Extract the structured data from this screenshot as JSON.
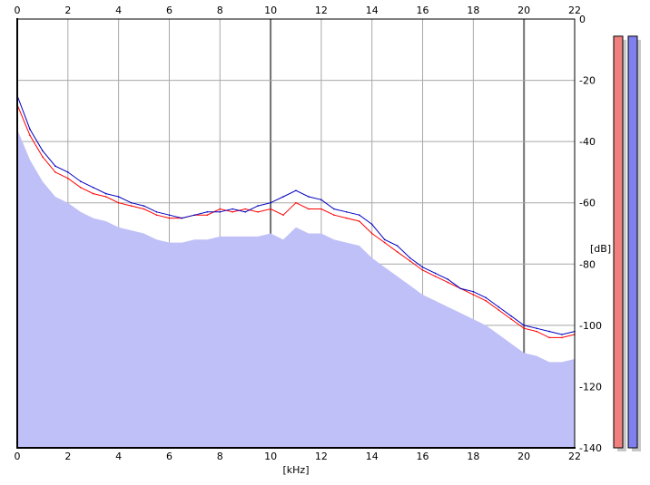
{
  "chart_data": {
    "type": "line",
    "xlabel": "[kHz]",
    "ylabel": "[dB]",
    "xlim": [
      0,
      22
    ],
    "ylim": [
      -140,
      0
    ],
    "x_ticks": [
      "0",
      "2",
      "4",
      "6",
      "8",
      "10",
      "12",
      "14",
      "16",
      "18",
      "20",
      "22"
    ],
    "y_ticks": [
      "0",
      "-20",
      "-40",
      "-60",
      "-80",
      "-100",
      "-120",
      "-140"
    ],
    "grid": true,
    "series": [
      {
        "color": "#ff0000",
        "x": [
          0,
          0.5,
          1,
          1.5,
          2,
          2.5,
          3,
          3.5,
          4,
          4.5,
          5,
          5.5,
          6,
          6.5,
          7,
          7.5,
          8,
          8.5,
          9,
          9.5,
          10,
          10.5,
          11,
          11.5,
          12,
          12.5,
          13,
          13.5,
          14,
          14.5,
          15,
          15.5,
          16,
          16.5,
          17,
          17.5,
          18,
          18.5,
          19,
          19.5,
          20,
          20.5,
          21,
          21.5,
          22
        ],
        "values": [
          -28,
          -38,
          -45,
          -50,
          -52,
          -55,
          -57,
          -58,
          -60,
          -61,
          -62,
          -64,
          -65,
          -65,
          -64,
          -64,
          -62,
          -63,
          -62,
          -63,
          -62,
          -64,
          -60,
          -62,
          -62,
          -64,
          -65,
          -66,
          -70,
          -73,
          -76,
          -79,
          -82,
          -84,
          -86,
          -88,
          -90,
          -92,
          -95,
          -98,
          -101,
          -102,
          -104,
          -104,
          -103
        ]
      },
      {
        "color": "#0000c0",
        "x": [
          0,
          0.5,
          1,
          1.5,
          2,
          2.5,
          3,
          3.5,
          4,
          4.5,
          5,
          5.5,
          6,
          6.5,
          7,
          7.5,
          8,
          8.5,
          9,
          9.5,
          10,
          10.5,
          11,
          11.5,
          12,
          12.5,
          13,
          13.5,
          14,
          14.5,
          15,
          15.5,
          16,
          16.5,
          17,
          17.5,
          18,
          18.5,
          19,
          19.5,
          20,
          20.5,
          21,
          21.5,
          22
        ],
        "values": [
          -25,
          -36,
          -43,
          -48,
          -50,
          -53,
          -55,
          -57,
          -58,
          -60,
          -61,
          -63,
          -64,
          -65,
          -64,
          -63,
          -63,
          -62,
          -63,
          -61,
          -60,
          -58,
          -56,
          -58,
          -59,
          -62,
          -63,
          -64,
          -67,
          -72,
          -74,
          -78,
          -81,
          -83,
          -85,
          -88,
          -89,
          -91,
          -94,
          -97,
          -100,
          -101,
          -102,
          -103,
          -102
        ]
      }
    ],
    "level_meters": [
      {
        "color": "#f08080",
        "level": 0.96
      },
      {
        "color": "#8080f0",
        "level": 0.96
      }
    ]
  }
}
